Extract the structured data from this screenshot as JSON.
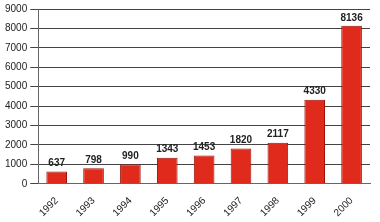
{
  "chart_data": {
    "type": "bar",
    "categories": [
      "1992",
      "1993",
      "1994",
      "1995",
      "1996",
      "1997",
      "1998",
      "1999",
      "2000"
    ],
    "values": [
      637,
      798,
      990,
      1343,
      1453,
      1820,
      2117,
      4330,
      8136
    ],
    "color": "#e02a1c",
    "ylim": [
      0,
      9000
    ],
    "yticks": [
      0,
      1000,
      2000,
      3000,
      4000,
      5000,
      6000,
      7000,
      8000,
      9000
    ],
    "grid": true,
    "data_labels": true
  }
}
